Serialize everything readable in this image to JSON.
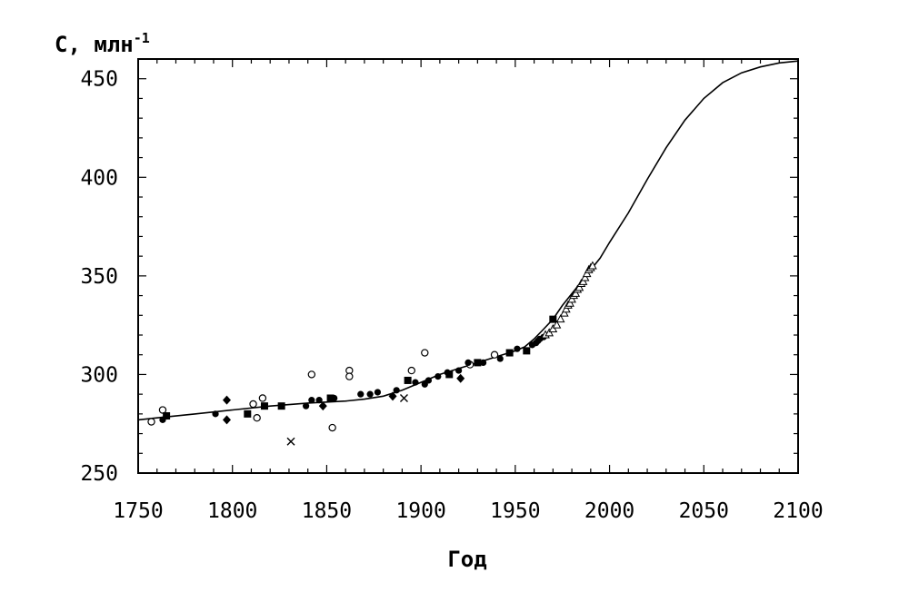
{
  "chart_data": {
    "type": "scatter",
    "title": "",
    "ylabel": "C, млн",
    "ylabel_exponent": "-1",
    "xlabel": "Год",
    "xlim": [
      1750,
      2100
    ],
    "ylim": [
      250,
      460
    ],
    "x_ticks": [
      "1750",
      "1800",
      "1850",
      "1900",
      "1950",
      "2000",
      "2050",
      "2100"
    ],
    "y_ticks": [
      "250",
      "300",
      "350",
      "400",
      "450"
    ],
    "grid": false,
    "line_color": "#000000",
    "series": [
      {
        "marker": "line",
        "points": [
          [
            1750,
            277
          ],
          [
            1760,
            278
          ],
          [
            1780,
            280
          ],
          [
            1800,
            282
          ],
          [
            1820,
            284
          ],
          [
            1840,
            285.5
          ],
          [
            1860,
            286.5
          ],
          [
            1870,
            287.5
          ],
          [
            1880,
            289
          ],
          [
            1890,
            292
          ],
          [
            1900,
            296
          ],
          [
            1910,
            300
          ],
          [
            1920,
            303
          ],
          [
            1930,
            306
          ],
          [
            1940,
            309
          ],
          [
            1950,
            312
          ],
          [
            1955,
            314
          ],
          [
            1960,
            318
          ],
          [
            1965,
            323
          ],
          [
            1970,
            328
          ],
          [
            1975,
            335
          ],
          [
            1980,
            341
          ],
          [
            1985,
            347
          ],
          [
            1990,
            353
          ],
          [
            1995,
            359
          ],
          [
            2000,
            367
          ],
          [
            2010,
            382
          ],
          [
            2020,
            399
          ],
          [
            2030,
            415
          ],
          [
            2040,
            429
          ],
          [
            2050,
            440
          ],
          [
            2060,
            448
          ],
          [
            2070,
            453
          ],
          [
            2080,
            456
          ],
          [
            2090,
            458
          ],
          [
            2100,
            459
          ]
        ]
      },
      {
        "marker": "open-circle",
        "points": [
          [
            1757,
            276
          ],
          [
            1763,
            282
          ],
          [
            1811,
            285
          ],
          [
            1813,
            278
          ],
          [
            1816,
            288
          ],
          [
            1842,
            300
          ],
          [
            1853,
            273
          ],
          [
            1862,
            302
          ],
          [
            1862,
            299
          ],
          [
            1895,
            302
          ],
          [
            1902,
            311
          ],
          [
            1926,
            305
          ],
          [
            1939,
            310
          ]
        ]
      },
      {
        "marker": "filled-circle",
        "points": [
          [
            1763,
            277
          ],
          [
            1791,
            280
          ],
          [
            1839,
            284
          ],
          [
            1842,
            287
          ],
          [
            1846,
            287
          ],
          [
            1854,
            288
          ],
          [
            1868,
            290
          ],
          [
            1873,
            290
          ],
          [
            1877,
            291
          ],
          [
            1887,
            292
          ],
          [
            1897,
            296
          ],
          [
            1902,
            295
          ],
          [
            1904,
            297
          ],
          [
            1909,
            299
          ],
          [
            1914,
            301
          ],
          [
            1920,
            302
          ],
          [
            1925,
            306
          ],
          [
            1933,
            306
          ],
          [
            1942,
            308
          ],
          [
            1951,
            313
          ],
          [
            1956,
            312
          ],
          [
            1959,
            315
          ],
          [
            1961,
            316
          ],
          [
            1962,
            317
          ],
          [
            1963,
            318
          ],
          [
            1965,
            319
          ]
        ]
      },
      {
        "marker": "filled-square",
        "points": [
          [
            1765,
            279
          ],
          [
            1808,
            280
          ],
          [
            1817,
            284
          ],
          [
            1826,
            284
          ],
          [
            1852,
            288
          ],
          [
            1893,
            297
          ],
          [
            1915,
            300
          ],
          [
            1930,
            306
          ],
          [
            1947,
            311
          ],
          [
            1956,
            312
          ],
          [
            1970,
            328
          ]
        ]
      },
      {
        "marker": "filled-diamond",
        "points": [
          [
            1797,
            287
          ],
          [
            1797,
            277
          ],
          [
            1848,
            284
          ],
          [
            1885,
            289
          ],
          [
            1921,
            298
          ]
        ]
      },
      {
        "marker": "cross",
        "points": [
          [
            1831,
            266
          ],
          [
            1891,
            288
          ]
        ]
      },
      {
        "marker": "open-triangle",
        "points": [
          [
            1966,
            320
          ],
          [
            1968,
            321
          ],
          [
            1970,
            323
          ],
          [
            1972,
            325
          ],
          [
            1974,
            328
          ],
          [
            1976,
            331
          ],
          [
            1977,
            333
          ],
          [
            1978,
            335
          ],
          [
            1979,
            336
          ],
          [
            1980,
            338
          ],
          [
            1981,
            340
          ],
          [
            1982,
            341
          ],
          [
            1983,
            343
          ],
          [
            1984,
            344
          ],
          [
            1985,
            346
          ],
          [
            1986,
            347
          ],
          [
            1987,
            349
          ],
          [
            1988,
            351
          ],
          [
            1989,
            353
          ],
          [
            1990,
            354
          ],
          [
            1991,
            355
          ]
        ]
      }
    ]
  }
}
